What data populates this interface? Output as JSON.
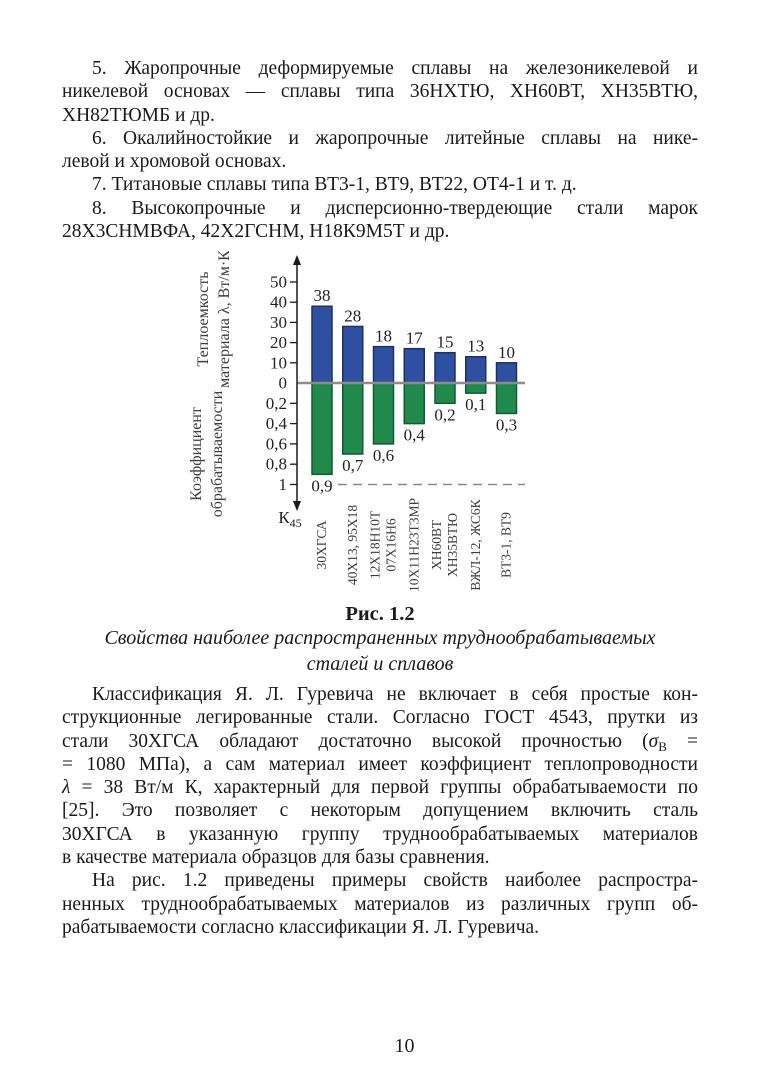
{
  "page": {
    "number": "10"
  },
  "content": {
    "paragraphs_top": [
      {
        "lines": [
          "5. Жаропрочные деформируемые сплавы на железоникелевой и",
          "никелевой основах — сплавы типа 36НХТЮ, ХН60ВТ, ХН35ВТЮ,",
          "ХН82ТЮМБ и др."
        ]
      },
      {
        "lines": [
          "6. Окалийностойкие и жаропрочные литейные сплавы на нике-",
          "левой и хромовой основах."
        ]
      },
      {
        "lines": [
          "7. Титановые сплавы типа ВТ3-1, ВТ9, ВТ22, ОТ4-1 и т. д."
        ]
      },
      {
        "lines": [
          "8. Высокопрочные и дисперсионно-твердеющие стали марок",
          "28Х3СНМВФА, 42Х2ГСНМ, Н18К9М5Т и др."
        ]
      }
    ],
    "figure_caption": {
      "label": "Рис. 1.2",
      "lines": [
        "Свойства наиболее распространенных труднообрабатываемых",
        "сталей и сплавов"
      ]
    },
    "paragraphs_bottom": [
      {
        "lines": [
          "Классификация Я. Л. Гуревича не включает в себя простые кон-",
          "струкционные легированные стали. Согласно ГОСТ 4543, прутки из",
          "стали 30ХГСА обладают достаточно высокой прочностью (<i>σ</i><sub>В</sub> =",
          "= 1080 МПа), а сам материал имеет коэффициент теплопроводности",
          "<i>λ</i> = 38 Вт/м К, характерный для первой группы обрабатываемости по",
          "[25]. Это позволяет с некоторым допущением включить сталь",
          "30ХГСА в указанную группу труднообрабатываемых материалов",
          "в качестве материала образцов для базы сравнения."
        ]
      },
      {
        "lines": [
          "На рис. 1.2 приведены примеры свойств наиболее распростра-",
          "ненных труднообрабатываемых материалов из различных групп об-",
          "рабатываемости согласно классификации Я. Л. Гуревича."
        ]
      }
    ]
  },
  "chart_data": {
    "type": "bar",
    "title": "Рис. 1.2 — Свойства наиболее распространенных труднообрабатываемых сталей и сплавов",
    "categories": [
      [
        "30ХГСА"
      ],
      [
        "40Х13, 95Х18"
      ],
      [
        "12Х18Н10Т",
        "07Х16Н6"
      ],
      [
        "10Х11Н23Т3МР"
      ],
      [
        "ХН60ВТ",
        "ХН35ВТЮ"
      ],
      [
        "ВЖЛ-12, ЖС6К"
      ],
      [
        "ВТ3-1, ВТ9"
      ]
    ],
    "series": [
      {
        "name": "Теплоемкость материала λ, Вт/м·К",
        "axis_title_lines": [
          "Теплоемкость",
          "материала λ, Вт/м·К"
        ],
        "direction": "up",
        "values": [
          38,
          28,
          18,
          17,
          15,
          13,
          10
        ],
        "value_labels": [
          "38",
          "28",
          "18",
          "17",
          "15",
          "13",
          "10"
        ],
        "ticks": [
          {
            "label": "50",
            "value": 50
          },
          {
            "label": "40",
            "value": 40
          },
          {
            "label": "30",
            "value": 30
          },
          {
            "label": "20",
            "value": 20
          },
          {
            "label": "10",
            "value": 10
          },
          {
            "label": "0",
            "value": 0
          }
        ],
        "ylim": [
          0,
          55
        ],
        "color": "#2F4FA0",
        "border_color": "#1B3268"
      },
      {
        "name": "Коэффициент обрабатываемости",
        "axis_title_lines": [
          "Коэффициент",
          "обрабатываемости"
        ],
        "direction": "down",
        "values": [
          0.9,
          0.7,
          0.6,
          0.4,
          0.2,
          0.1,
          0.3
        ],
        "value_labels": [
          "0,9",
          "0,7",
          "0,6",
          "0,4",
          "0,2",
          "0,1",
          "0,3"
        ],
        "ticks": [
          {
            "label": "0,2",
            "value": 0.2
          },
          {
            "label": "0,4",
            "value": 0.4
          },
          {
            "label": "0,6",
            "value": 0.6
          },
          {
            "label": "0,8",
            "value": 0.8
          },
          {
            "label": "1",
            "value": 1
          }
        ],
        "ylim": [
          0,
          1.05
        ],
        "color": "#1F8A4C",
        "border_color": "#0E5C30"
      }
    ],
    "axis_corner_label": {
      "base": "К",
      "sub": "45"
    },
    "reference_line": {
      "value": 1,
      "style": "dashed"
    },
    "zero_line_color": "#8C8C8C",
    "grid": false,
    "legend": "none"
  }
}
